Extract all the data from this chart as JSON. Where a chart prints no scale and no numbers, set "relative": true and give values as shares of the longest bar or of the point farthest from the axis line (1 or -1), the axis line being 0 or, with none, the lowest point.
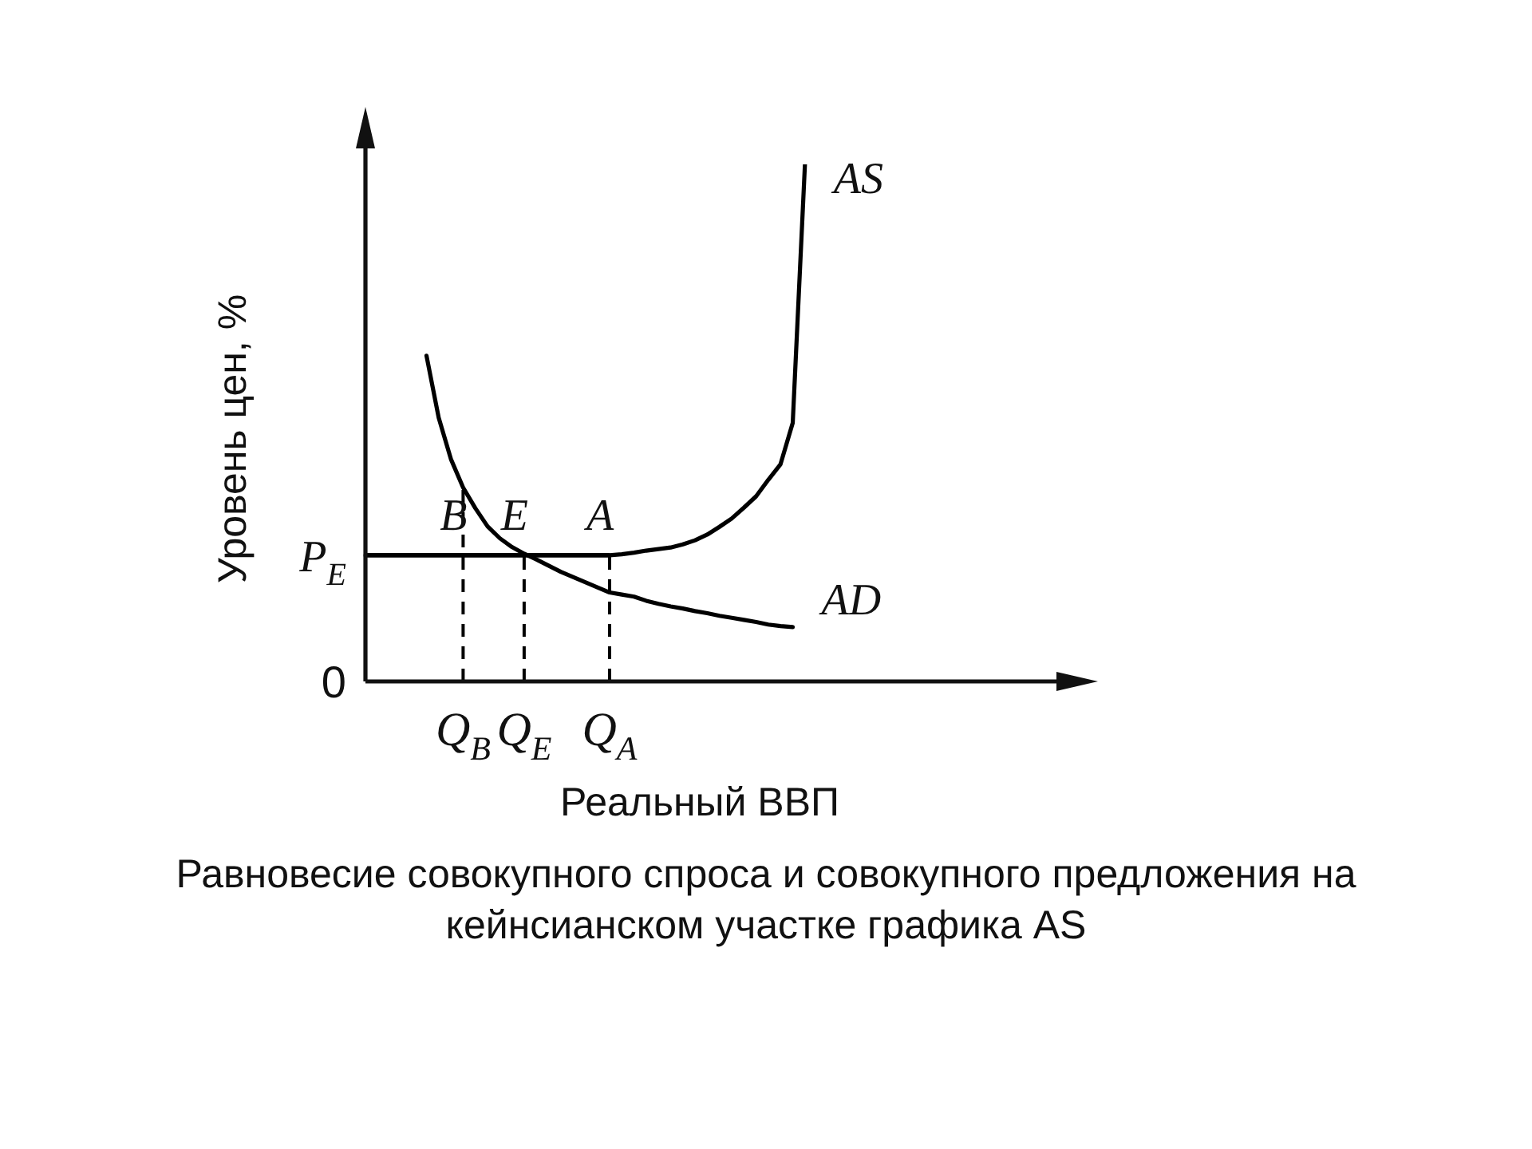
{
  "chart_data": {
    "type": "line",
    "relative": true,
    "xlabel": "Реальный ВВП",
    "ylabel": "Уровень цен, %",
    "marker": "none",
    "legend": false,
    "categories": [
      null,
      null,
      null,
      null,
      null,
      null,
      null,
      null,
      "Q$_{B}$",
      null,
      null,
      null,
      null,
      "Q$_{E}$",
      null,
      null,
      null,
      null,
      null,
      null,
      "Q$_{A}$",
      null,
      null,
      null,
      null,
      null,
      null,
      null,
      null,
      null,
      null,
      null,
      null,
      null,
      null,
      null,
      null,
      null,
      null,
      null,
      null,
      null,
      null,
      null,
      null,
      null,
      null,
      null,
      null,
      null,
      null,
      null,
      null,
      null,
      null,
      null,
      null,
      null,
      null,
      null,
      null
    ],
    "series": [
      {
        "name": "AS",
        "color": "#000000",
        "values": [
          0.244,
          0.244,
          0.244,
          0.244,
          0.244,
          0.244,
          0.244,
          0.244,
          0.244,
          0.244,
          0.244,
          0.244,
          0.244,
          0.244,
          0.244,
          0.244,
          0.244,
          0.244,
          0.244,
          0.244,
          0.244,
          0.246,
          0.249,
          0.253,
          0.256,
          0.259,
          0.265,
          0.273,
          0.284,
          0.299,
          0.315,
          0.336,
          0.358,
          0.39,
          0.42,
          0.5,
          1,
          null,
          null,
          null,
          null,
          null,
          null,
          null,
          null,
          null,
          null,
          null,
          null,
          null,
          null,
          null,
          null,
          null,
          null,
          null,
          null,
          null,
          null,
          null,
          null
        ]
      },
      {
        "name": "AD",
        "color": "#000000",
        "values": [
          null,
          null,
          null,
          null,
          null,
          0.63,
          0.51,
          0.43,
          0.375,
          0.335,
          0.3,
          0.277,
          0.26,
          0.247,
          0.236,
          0.224,
          0.212,
          0.202,
          0.192,
          0.182,
          0.172,
          0.168,
          0.164,
          0.156,
          0.15,
          0.145,
          0.141,
          0.136,
          0.132,
          0.127,
          0.123,
          0.119,
          0.115,
          0.11,
          0.107,
          0.105,
          null,
          null,
          null,
          null,
          null,
          null,
          null,
          null,
          null,
          null,
          null,
          null,
          null,
          null,
          null,
          null,
          null,
          null,
          null,
          null,
          null,
          null,
          null,
          null,
          null
        ]
      }
    ],
    "ref_lines": [
      {
        "axis": "x",
        "value": "Q$_{B}$",
        "color": "#000000",
        "line_style": "dashed"
      },
      {
        "axis": "x",
        "value": "Q$_{E}$",
        "color": "#000000",
        "line_style": "dashed"
      },
      {
        "axis": "x",
        "value": "Q$_{A}$",
        "color": "#000000",
        "line_style": "dashed"
      },
      {
        "axis": "y",
        "value": 0.244,
        "label": "P$_{E}$",
        "color": "#000000",
        "line_style": "solid"
      }
    ],
    "annotations": [
      "0",
      {
        "text": "B",
        "x": "Q$_{B}$",
        "y": 0.244
      },
      {
        "text": "E",
        "x": "Q$_{E}$",
        "y": 0.244
      },
      {
        "text": "A",
        "x": "Q$_{A}$",
        "y": 0.244
      },
      "Равновесие совокупного спроса и совокупного предложения на кейнсианском участке графика AS"
    ]
  }
}
